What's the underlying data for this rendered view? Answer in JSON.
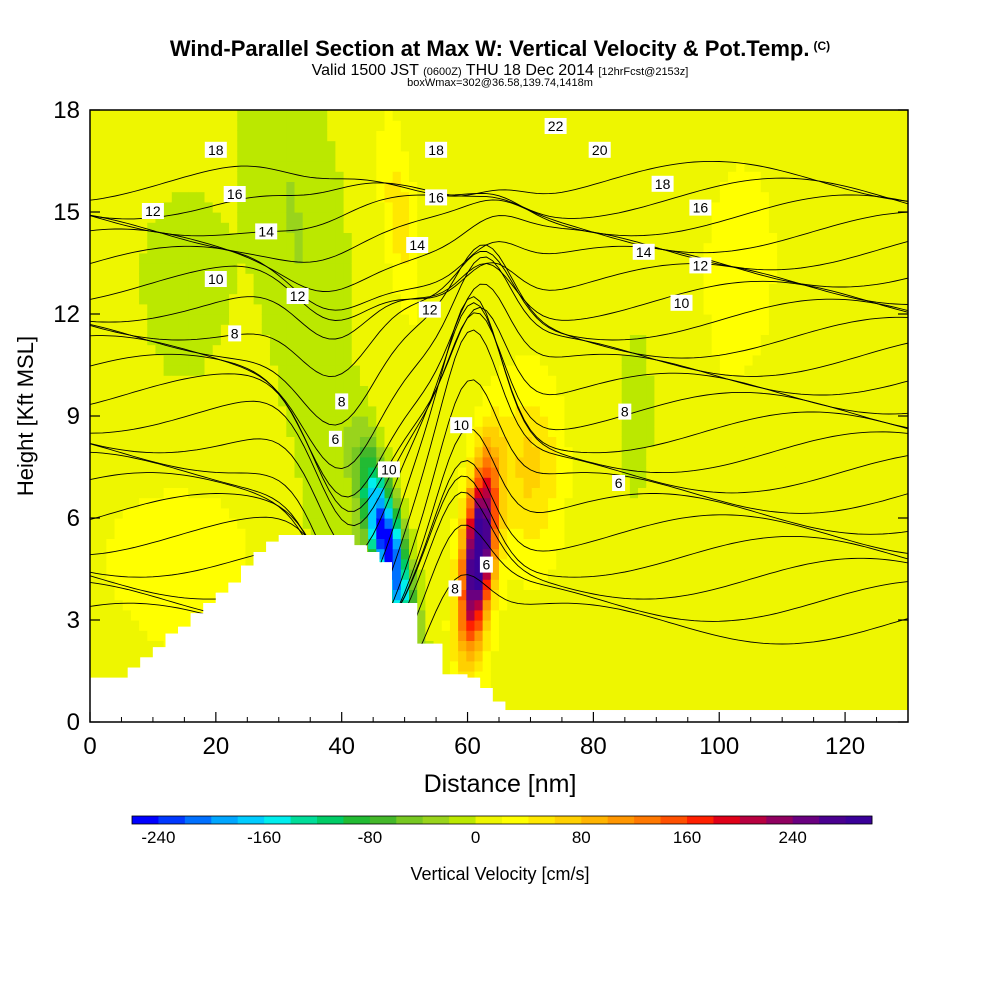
{
  "title": {
    "main": "Wind-Parallel Section at Max W: Vertical Velocity & Pot.Temp.",
    "mark": "(C)",
    "valid_prefix": "Valid 1500 JST",
    "valid_utc": "(0600Z)",
    "valid_date": "THU 18 Dec 2014",
    "forecast": "[12hrFcst@2153z]",
    "box_info": "boxWmax=302@36.58,139.74,1418m"
  },
  "chart_data": {
    "type": "heatmap",
    "description_kind": "vertical cross-section, filled vertical velocity with potential temperature contours",
    "xlabel": "Distance [nm]",
    "ylabel": "Height [Kft MSL]",
    "xlim": [
      0,
      130
    ],
    "ylim": [
      0,
      18
    ],
    "x_ticks": [
      0,
      20,
      40,
      60,
      80,
      100,
      120
    ],
    "y_ticks": [
      0,
      3,
      6,
      9,
      12,
      15,
      18
    ],
    "colorbar": {
      "label": "Vertical Velocity [cm/s]",
      "min": -260,
      "max": 300,
      "step": 20,
      "tick_values": [
        -240,
        -160,
        -80,
        0,
        80,
        160,
        240
      ],
      "tick_labels": [
        "-240",
        "-160",
        "-80",
        "0",
        "80",
        "160",
        "240"
      ],
      "colors": [
        "#0000ff",
        "#0038ff",
        "#0070ff",
        "#00a6ff",
        "#00ccff",
        "#00eeee",
        "#00dd99",
        "#00cc66",
        "#22bb33",
        "#44b82a",
        "#77c822",
        "#99d41c",
        "#bbe800",
        "#eef600",
        "#ffff00",
        "#ffe800",
        "#ffd000",
        "#ffb400",
        "#ff9600",
        "#ff7800",
        "#ff5000",
        "#ff2000",
        "#e00018",
        "#b80040",
        "#900060",
        "#6a0080",
        "#4a0090",
        "#3a0099"
      ]
    },
    "terrain_profile": {
      "x": [
        0,
        6,
        8,
        10,
        12,
        14,
        16,
        18,
        20,
        22,
        24,
        26,
        28,
        30,
        32,
        34,
        36,
        38,
        40,
        42,
        44,
        46,
        48,
        50,
        52,
        54,
        56,
        58,
        60,
        62,
        64,
        66,
        68
      ],
      "height": [
        1.3,
        1.6,
        1.9,
        2.2,
        2.6,
        2.8,
        3.2,
        3.5,
        3.8,
        4.1,
        4.6,
        5.0,
        5.3,
        5.5,
        5.5,
        5.5,
        5.5,
        5.5,
        5.5,
        5.2,
        5.0,
        4.7,
        3.5,
        3.5,
        2.3,
        2.3,
        1.4,
        1.4,
        1.3,
        1.0,
        0.6,
        0.35,
        0.35
      ]
    },
    "velocity_features": [
      {
        "kind": "downdraft",
        "x": 47,
        "height": 5.0,
        "value": -240
      },
      {
        "kind": "updraft",
        "x": 61.5,
        "height": 4.5,
        "value": 302
      },
      {
        "kind": "weak updraft",
        "x": 28,
        "height": 6.0,
        "value": 20
      },
      {
        "kind": "weak updraft",
        "x": 50,
        "height": 14.5,
        "value": 40
      },
      {
        "kind": "weak updraft",
        "x": 72,
        "height": 8.0,
        "value": 30
      },
      {
        "kind": "weak updraft",
        "x": 100,
        "height": 14.0,
        "value": 20
      },
      {
        "kind": "weak downdraft",
        "x": 37,
        "height": 11.5,
        "value": -60
      },
      {
        "kind": "weak downdraft",
        "x": 15,
        "height": 13.5,
        "value": -30
      },
      {
        "kind": "weak downdraft",
        "x": 87,
        "height": 8.5,
        "value": -25
      }
    ],
    "potential_temperature_contour_labels": [
      {
        "text": "22",
        "x": 74,
        "height": 17.5
      },
      {
        "text": "20",
        "x": 81,
        "height": 16.8
      },
      {
        "text": "18",
        "x": 20,
        "height": 16.8
      },
      {
        "text": "18",
        "x": 55,
        "height": 16.8
      },
      {
        "text": "18",
        "x": 91,
        "height": 15.8
      },
      {
        "text": "16",
        "x": 23,
        "height": 15.5
      },
      {
        "text": "16",
        "x": 55,
        "height": 15.4
      },
      {
        "text": "16",
        "x": 97,
        "height": 15.1
      },
      {
        "text": "14",
        "x": 28,
        "height": 14.4
      },
      {
        "text": "14",
        "x": 52,
        "height": 14.0
      },
      {
        "text": "14",
        "x": 88,
        "height": 13.8
      },
      {
        "text": "12",
        "x": 10,
        "height": 15.0
      },
      {
        "text": "12",
        "x": 33,
        "height": 12.5
      },
      {
        "text": "12",
        "x": 54,
        "height": 12.1
      },
      {
        "text": "12",
        "x": 97,
        "height": 13.4
      },
      {
        "text": "10",
        "x": 20,
        "height": 13.0
      },
      {
        "text": "10",
        "x": 94,
        "height": 12.3
      },
      {
        "text": "10",
        "x": 59,
        "height": 8.7
      },
      {
        "text": "10",
        "x": 47.5,
        "height": 7.4
      },
      {
        "text": "8",
        "x": 23,
        "height": 11.4
      },
      {
        "text": "8",
        "x": 40,
        "height": 9.4
      },
      {
        "text": "8",
        "x": 85,
        "height": 9.1
      },
      {
        "text": "8",
        "x": 58,
        "height": 3.9
      },
      {
        "text": "6",
        "x": 39,
        "height": 8.3
      },
      {
        "text": "6",
        "x": 84,
        "height": 7.0
      },
      {
        "text": "6",
        "x": 63,
        "height": 4.6
      }
    ]
  }
}
